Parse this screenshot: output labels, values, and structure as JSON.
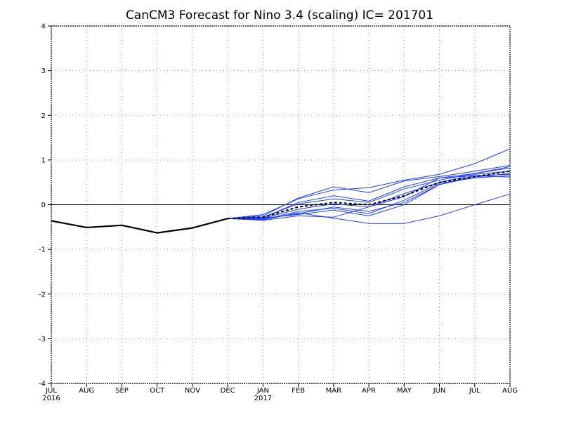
{
  "chart_data": {
    "type": "line",
    "title": "CanCM3 Forecast for Nino 3.4 (scaling) IC= 201701",
    "xlabel": "",
    "ylabel": "",
    "categories": [
      "JUL",
      "AUG",
      "SEP",
      "OCT",
      "NOV",
      "DEC",
      "JAN",
      "FEB",
      "MAR",
      "APR",
      "MAY",
      "JUN",
      "JUL",
      "AUG"
    ],
    "year_labels": [
      {
        "index": 0,
        "text": "2016"
      },
      {
        "index": 6,
        "text": "2017"
      }
    ],
    "ylim": [
      -4,
      4
    ],
    "yticks": [
      -4,
      -3,
      -2,
      -1,
      0,
      1,
      2,
      3,
      4
    ],
    "grid": true,
    "zero_line": true,
    "colors": {
      "observed": "#000000",
      "members": "#1f3fff",
      "ensemble_mean": "#000000",
      "grid": "#999999"
    },
    "observed": {
      "start_index": 0,
      "values": [
        -0.36,
        -0.51,
        -0.46,
        -0.63,
        -0.52,
        -0.31
      ]
    },
    "members": [
      {
        "start_index": 5,
        "values": [
          -0.31,
          -0.25,
          0.15,
          0.4,
          0.27,
          0.53,
          0.63,
          0.75,
          0.88
        ]
      },
      {
        "start_index": 5,
        "values": [
          -0.31,
          -0.22,
          0.13,
          0.33,
          0.38,
          0.55,
          0.68,
          0.92,
          1.25
        ]
      },
      {
        "start_index": 5,
        "values": [
          -0.31,
          -0.28,
          0.02,
          0.13,
          0.05,
          0.35,
          0.55,
          0.7,
          0.82
        ]
      },
      {
        "start_index": 5,
        "values": [
          -0.31,
          -0.3,
          -0.1,
          0.02,
          -0.05,
          0.25,
          0.5,
          0.68,
          0.75
        ]
      },
      {
        "start_index": 5,
        "values": [
          -0.31,
          -0.32,
          -0.2,
          -0.05,
          -0.15,
          0.05,
          0.45,
          0.62,
          0.7
        ]
      },
      {
        "start_index": 5,
        "values": [
          -0.31,
          -0.33,
          -0.15,
          -0.08,
          -0.2,
          0.1,
          0.48,
          0.6,
          0.65
        ]
      },
      {
        "start_index": 5,
        "values": [
          -0.31,
          -0.35,
          -0.25,
          -0.28,
          -0.05,
          0.18,
          0.6,
          0.65,
          0.62
        ]
      },
      {
        "start_index": 5,
        "values": [
          -0.31,
          -0.3,
          -0.22,
          -0.12,
          -0.25,
          0.0,
          0.45,
          0.65,
          0.68
        ]
      },
      {
        "start_index": 5,
        "values": [
          -0.31,
          -0.34,
          -0.18,
          -0.3,
          -0.42,
          -0.42,
          -0.25,
          0.0,
          0.24
        ]
      },
      {
        "start_index": 5,
        "values": [
          -0.31,
          -0.29,
          0.05,
          0.2,
          0.08,
          0.4,
          0.6,
          0.7,
          0.85
        ]
      }
    ],
    "ensemble_mean": {
      "start_index": 5,
      "values": [
        -0.31,
        -0.28,
        -0.05,
        0.05,
        0.0,
        0.2,
        0.5,
        0.63,
        0.75
      ]
    }
  }
}
